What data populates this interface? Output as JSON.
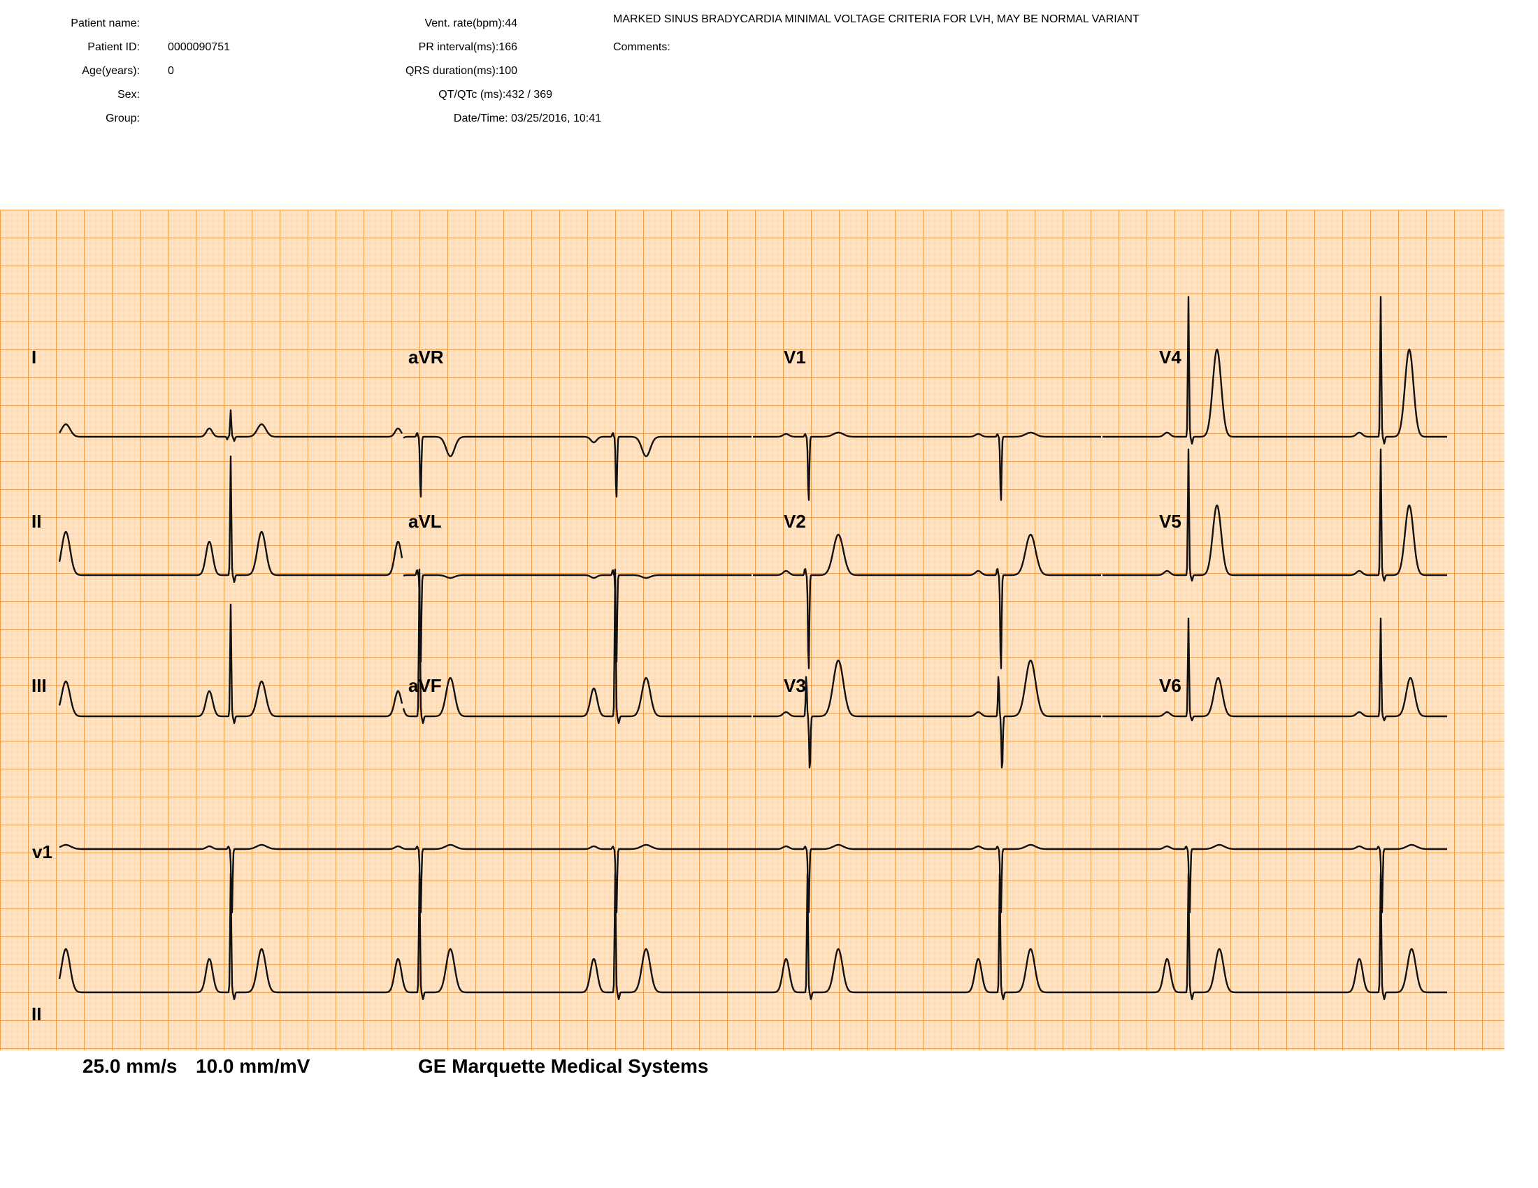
{
  "patient": {
    "name_label": "Patient name:",
    "name_value": "",
    "id_label": "Patient ID:",
    "id_value": "0000090751",
    "age_label": "Age(years):",
    "age_value": "0",
    "sex_label": "Sex:",
    "sex_value": "",
    "group_label": "Group:",
    "group_value": ""
  },
  "measurements": {
    "vent_rate": "Vent. rate(bpm):44",
    "pr_interval": "PR interval(ms):166",
    "qrs_duration": "QRS duration(ms):100",
    "qt_qtc": "QT/QTc (ms):432 / 369",
    "datetime": "Date/Time: 03/25/2016, 10:41"
  },
  "interpretation": {
    "statement": "MARKED SINUS BRADYCARDIA MINIMAL VOLTAGE CRITERIA FOR LVH, MAY BE NORMAL VARIANT",
    "comments_label": "Comments:"
  },
  "leads": {
    "row1": [
      "I",
      "aVR",
      "V1",
      "V4"
    ],
    "row2": [
      "II",
      "aVL",
      "V2",
      "V5"
    ],
    "row3": [
      "III",
      "aVF",
      "V3",
      "V6"
    ],
    "rhythm1": "v1",
    "rhythm2": "II"
  },
  "footer": {
    "speed": "25.0 mm/s",
    "gain": "10.0 mm/mV",
    "manufacturer": "GE Marquette Medical Systems"
  },
  "colors": {
    "paper": "#fde3c4",
    "grid_minor": "#f3a04f",
    "grid_major": "#ef8a26",
    "trace": "#111111"
  }
}
